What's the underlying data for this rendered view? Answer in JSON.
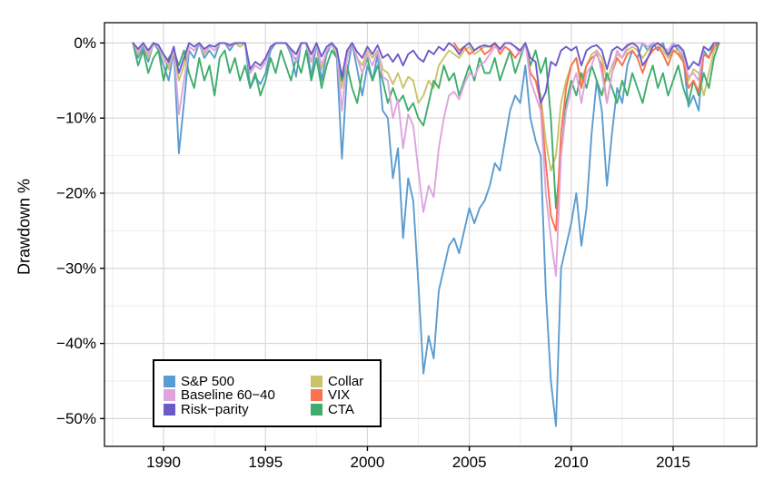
{
  "chart": {
    "ylabel": "Drawdown %",
    "x_axis": {
      "min": 1987.1,
      "max": 2019.1,
      "majors": [
        1990,
        1995,
        2000,
        2005,
        2010,
        2015
      ],
      "minors": [
        1987.5,
        1992.5,
        1997.5,
        2002.5,
        2007.5,
        2012.5,
        2017.5
      ],
      "labels": [
        "1990",
        "1995",
        "2000",
        "2005",
        "2010",
        "2015"
      ]
    },
    "y_axis": {
      "min": -53.7,
      "max": 2.7,
      "majors": [
        0,
        -10,
        -20,
        -30,
        -40,
        -50
      ],
      "minors": [
        -5,
        -15,
        -25,
        -35,
        -45
      ],
      "labels": [
        "0%",
        "−10%",
        "−20%",
        "−30%",
        "−40%",
        "−50%"
      ]
    },
    "colors": {
      "grid_major": "#d8d8d8",
      "grid_minor": "#ececec",
      "border": "#2f2f2f",
      "tick": "#000000",
      "text": "#000000",
      "background": "#ffffff"
    }
  },
  "legend": {
    "items": [
      {
        "label": "S&P 500",
        "color": "#5B9CD0"
      },
      {
        "label": "Baseline 60−40",
        "color": "#DEA4DE"
      },
      {
        "label": "Risk−parity",
        "color": "#6C5BC7"
      },
      {
        "label": "Collar",
        "color": "#CBC36A"
      },
      {
        "label": "VIX",
        "color": "#F9714D"
      },
      {
        "label": "CTA",
        "color": "#3EAD6C"
      }
    ]
  },
  "chart_data": {
    "type": "line",
    "title": "",
    "xlabel": "",
    "ylabel": "Drawdown %",
    "xlim": [
      1987.1,
      2019.1
    ],
    "ylim": [
      -53.7,
      2.7
    ],
    "grid": true,
    "legend_position": "inside bottom-left",
    "x_unit": "year (monthly drawdown series, approx. quarterly sampled)",
    "y_unit": "drawdown percent",
    "x_start": 1988.5,
    "x_step": 0.25,
    "series": [
      {
        "name": "S&P 500",
        "color": "#5B9CD0",
        "values": [
          0,
          -2,
          -0.5,
          -2.5,
          0,
          -1,
          -3,
          -5,
          -1,
          -14.7,
          -8,
          -1,
          -2,
          0,
          -2,
          -1,
          -2,
          0,
          0,
          -1,
          0,
          -0.5,
          0,
          -6,
          -4.5,
          -5.5,
          -4,
          -1,
          0,
          0,
          0,
          -1.5,
          -4.5,
          0,
          0,
          -4.5,
          0,
          -5,
          -1.5,
          0,
          -2,
          -15.4,
          -4,
          0,
          -3.5,
          -7,
          -3,
          -5,
          -1.5,
          -9,
          -10,
          -18,
          -14,
          -26,
          -18,
          -21,
          -32,
          -44,
          -39,
          -42,
          -33,
          -30,
          -27,
          -26,
          -28,
          -25,
          -22,
          -24,
          -22,
          -21,
          -19,
          -16,
          -17,
          -13,
          -9,
          -7,
          -8,
          -3,
          -10,
          -13,
          -15,
          -33,
          -45,
          -51,
          -30,
          -27,
          -24,
          -20,
          -27,
          -22,
          -12,
          -5,
          -9,
          -19,
          -12,
          -6,
          -8,
          -3,
          -1,
          -2,
          0,
          -1,
          0,
          -1,
          0,
          -2,
          0,
          -1,
          -2,
          -8.5,
          -7,
          -9,
          -1,
          -2,
          0,
          0
        ]
      },
      {
        "name": "Collar",
        "color": "#CBC36A",
        "values": [
          0,
          -1.5,
          0,
          -2,
          0,
          -0.5,
          -2,
          -3.5,
          -1,
          -5,
          -3,
          -0.5,
          -1,
          0,
          -1.5,
          -0.5,
          -1,
          0,
          0,
          -0.5,
          0,
          -0.5,
          0,
          -4,
          -3,
          -3.5,
          -2.5,
          -0.5,
          0,
          0,
          0,
          -1,
          -2.5,
          0,
          0,
          -2.5,
          0,
          -3.5,
          -1,
          0,
          -1.5,
          -6,
          -1.5,
          0,
          -2,
          -3,
          -1,
          -2,
          -1,
          -3.5,
          -4,
          -5.5,
          -4,
          -6,
          -4.5,
          -5,
          -8,
          -7,
          -5,
          -6,
          -3,
          -2,
          -1,
          -1.5,
          -2,
          -1,
          -0.5,
          -1.5,
          -1,
          -0.5,
          -0.5,
          0,
          -1,
          0,
          0,
          -0.5,
          -1.5,
          0,
          -4,
          -5,
          -7,
          -13,
          -17,
          -15,
          -8,
          -5,
          -3,
          -2,
          -5,
          -3,
          -1.5,
          -1,
          -2,
          -5,
          -3,
          -1.5,
          -2,
          -1,
          -0.5,
          -1,
          -2,
          -1,
          -0.5,
          0,
          -1,
          -2,
          -1,
          -1,
          -2.5,
          -5,
          -3.5,
          -4,
          -7,
          -4,
          -1,
          0
        ]
      },
      {
        "name": "CTA",
        "color": "#3EAD6C",
        "values": [
          0,
          -3,
          -1,
          -4,
          -2,
          -1,
          -5,
          -2,
          -1,
          -3,
          -1,
          -4,
          -6,
          -2,
          -5,
          -3,
          -7,
          -2,
          -1,
          -4,
          -2,
          -5,
          -3,
          -6,
          -4,
          -7,
          -5,
          -2,
          -4,
          -1,
          -3,
          -5,
          -2,
          -4,
          -1,
          -5,
          -2,
          -6,
          -3,
          -1,
          -2,
          -5,
          -3,
          -6,
          -8,
          -4,
          -2,
          -5,
          -3,
          -5,
          -8,
          -6,
          -8,
          -7,
          -9,
          -8,
          -10,
          -11,
          -8,
          -5,
          -6,
          -3,
          -5,
          -4,
          -7,
          -5,
          -3,
          -5,
          -2,
          -4,
          -4,
          -2,
          -5,
          -3,
          -1,
          -4,
          -2,
          0,
          -3,
          -1,
          -4,
          -2,
          -10,
          -22,
          -15,
          -8,
          -5,
          -7,
          -4,
          -6,
          -3,
          -5,
          -7,
          -4,
          -6,
          -8,
          -5,
          -7,
          -4,
          -6,
          -8,
          -5,
          -3,
          -6,
          -4,
          -7,
          -5,
          -3,
          -6,
          -8,
          -5,
          -7,
          -4,
          -6,
          -2,
          0
        ]
      },
      {
        "name": "VIX",
        "color": "#F9714D",
        "values": [
          null,
          null,
          null,
          null,
          null,
          null,
          null,
          null,
          null,
          null,
          null,
          null,
          null,
          null,
          null,
          null,
          null,
          null,
          null,
          null,
          null,
          null,
          null,
          null,
          null,
          null,
          null,
          null,
          null,
          null,
          null,
          null,
          null,
          null,
          null,
          null,
          null,
          null,
          null,
          null,
          null,
          null,
          null,
          null,
          null,
          null,
          null,
          null,
          null,
          null,
          null,
          null,
          null,
          null,
          null,
          null,
          null,
          null,
          null,
          null,
          null,
          null,
          null,
          0,
          -1,
          -0.5,
          -1.5,
          -1,
          -0.5,
          -1.5,
          -1,
          0,
          -1.5,
          -0.5,
          -1,
          -2,
          -1,
          0,
          -4,
          -5,
          -8,
          -16,
          -23,
          -25,
          -12,
          -6,
          -3,
          -2,
          -6,
          -3,
          -2,
          -1.5,
          -3,
          -8,
          -4,
          -2,
          -3,
          -1.5,
          -1,
          -2,
          -4,
          -2,
          -1,
          -0.5,
          -1.5,
          -3,
          -1,
          -1.5,
          -2.5,
          -6,
          -5,
          -6.5,
          -1.5,
          -2,
          -0.5,
          0
        ]
      },
      {
        "name": "Baseline 60-40",
        "color": "#DEA4DE",
        "values": [
          0,
          -1.2,
          0,
          -1.5,
          0,
          -0.5,
          -1.8,
          -3,
          -0.5,
          -9.5,
          -5,
          -0.5,
          -1,
          0,
          -1.2,
          -0.5,
          -1,
          0,
          0,
          -0.5,
          0,
          0,
          0,
          -4,
          -3,
          -3.5,
          -2.5,
          -0.5,
          0,
          0,
          0,
          -1,
          -2.5,
          0,
          0,
          -2.5,
          0,
          -3,
          -1,
          0,
          -1,
          -9,
          -2,
          0,
          -2,
          -4,
          -1.5,
          -3,
          -1,
          -4.5,
          -5,
          -10,
          -7.5,
          -14,
          -9.5,
          -11,
          -17,
          -22.5,
          -19,
          -20.5,
          -14,
          -10,
          -7,
          -6.5,
          -7.5,
          -5.5,
          -4,
          -4.5,
          -3,
          -2.5,
          -1.5,
          -0.5,
          -1,
          0,
          0,
          -0.5,
          -1.5,
          0,
          -5,
          -7,
          -9,
          -20,
          -26,
          -31,
          -15,
          -9,
          -6,
          -4,
          -8,
          -4,
          -3,
          -1,
          -4,
          -8,
          -4,
          -1,
          -2,
          -0.5,
          0,
          0,
          0,
          -0.5,
          0,
          0,
          -0.5,
          -1,
          0,
          -0.5,
          -1.5,
          -4.5,
          -4,
          -5,
          -0.5,
          -1,
          0,
          0
        ]
      },
      {
        "name": "Risk-parity",
        "color": "#6C5BC7",
        "values": [
          0,
          -0.8,
          0,
          -1,
          0,
          -0.3,
          -1.5,
          -2.5,
          -0.5,
          -4,
          -2,
          0,
          -0.5,
          0,
          -0.8,
          -0.3,
          -0.5,
          0,
          0,
          -0.3,
          0,
          0,
          0,
          -3.5,
          -2.5,
          -3,
          -2,
          -0.5,
          0,
          0,
          0,
          -0.8,
          -1.5,
          0,
          0,
          -1.5,
          0,
          -1.8,
          -0.5,
          0,
          -0.8,
          -4.5,
          -1,
          0,
          -1.2,
          -2,
          -0.5,
          -1.5,
          -0.3,
          -2,
          -1.5,
          -2.5,
          -1.5,
          -3,
          -1.5,
          -1,
          -2,
          -2.5,
          -1,
          -1.5,
          -0.5,
          -1,
          0,
          -0.5,
          -1.5,
          -0.5,
          0,
          -1,
          -0.5,
          -0.3,
          -0.5,
          0,
          -0.8,
          0,
          0,
          -0.5,
          -1,
          0,
          -2,
          -2.5,
          -8,
          -6.5,
          -2.5,
          -3,
          -1,
          -0.5,
          -1,
          -0.5,
          -3,
          -1,
          -0.5,
          -0.3,
          -1,
          -3.5,
          -1,
          -0.5,
          -1,
          -0.3,
          0,
          -0.5,
          -3,
          -2,
          -0.5,
          0,
          -0.5,
          -1.5,
          -0.5,
          -0.3,
          -1,
          -3.5,
          -2.5,
          -3,
          -0.5,
          -1,
          0,
          0
        ]
      }
    ]
  }
}
